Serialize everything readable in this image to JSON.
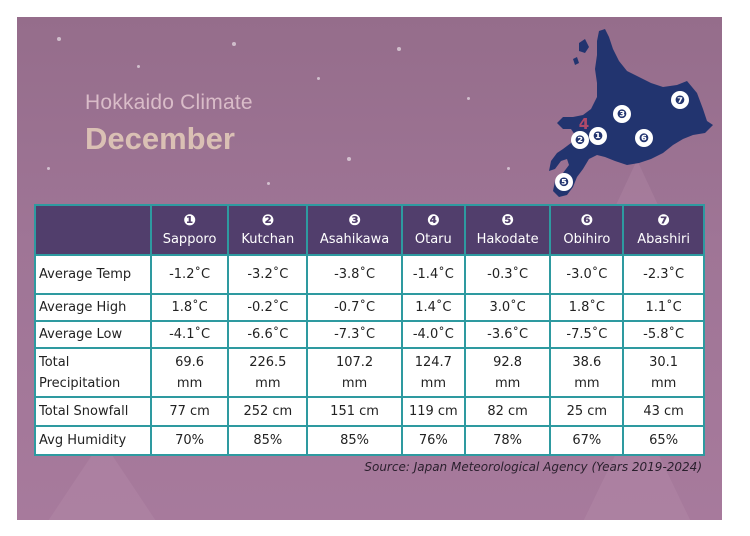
{
  "title": {
    "line1": "Hokkaido Climate",
    "line2": "December"
  },
  "colors": {
    "background": "#9f7596",
    "header": "#513e6c",
    "grid": "#2e9aa0",
    "map": "#22346f"
  },
  "map": {
    "markers": [
      "❶",
      "❷",
      "❸",
      "4",
      "❺",
      "❻",
      "❼"
    ]
  },
  "table": {
    "columns": [
      {
        "num": "❶",
        "name": "Sapporo"
      },
      {
        "num": "❷",
        "name": "Kutchan"
      },
      {
        "num": "❸",
        "name": "Asahikawa"
      },
      {
        "num": "❹",
        "name": "Otaru"
      },
      {
        "num": "❺",
        "name": "Hakodate"
      },
      {
        "num": "❻",
        "name": "Obihiro"
      },
      {
        "num": "❼",
        "name": "Abashiri"
      }
    ],
    "rows": [
      {
        "label": "Average Temp",
        "values": [
          "-1.2˚C",
          "-3.2˚C",
          "-3.8˚C",
          "-1.4˚C",
          "-0.3˚C",
          "-3.0˚C",
          "-2.3˚C"
        ]
      },
      {
        "label": "Average High",
        "values": [
          "1.8˚C",
          "-0.2˚C",
          "-0.7˚C",
          "1.4˚C",
          "3.0˚C",
          "1.8˚C",
          "1.1˚C"
        ]
      },
      {
        "label": "Average Low",
        "values": [
          "-4.1˚C",
          "-6.6˚C",
          "-7.3˚C",
          "-4.0˚C",
          "-3.6˚C",
          "-7.5˚C",
          "-5.8˚C"
        ]
      },
      {
        "label_line1": "Total",
        "label_line2": "Precipitation",
        "values_line1": [
          "69.6",
          "226.5",
          "107.2",
          "124.7",
          "92.8",
          "38.6",
          "30.1"
        ],
        "unit": "mm"
      },
      {
        "label": "Total Snowfall",
        "values": [
          "77 cm",
          "252 cm",
          "151 cm",
          "119 cm",
          "82 cm",
          "25 cm",
          "43 cm"
        ]
      },
      {
        "label": "Avg Humidity",
        "values": [
          "70%",
          "85%",
          "85%",
          "76%",
          "78%",
          "67%",
          "65%"
        ]
      }
    ]
  },
  "source": "Source: Japan Meteorological Agency (Years 2019-2024)"
}
